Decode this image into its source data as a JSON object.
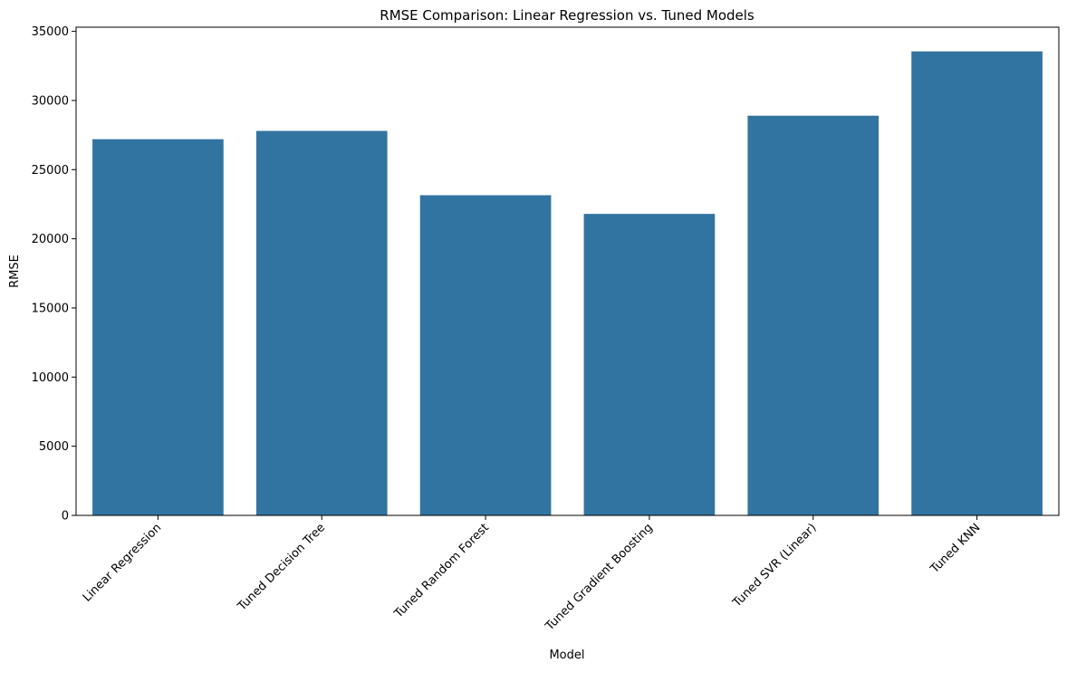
{
  "chart_data": {
    "type": "bar",
    "title": "RMSE Comparison: Linear Regression vs. Tuned Models",
    "xlabel": "Model",
    "ylabel": "RMSE",
    "categories": [
      "Linear Regression",
      "Tuned Decision Tree",
      "Tuned Random Forest",
      "Tuned Gradient Boosting",
      "Tuned SVR (Linear)",
      "Tuned KNN"
    ],
    "values": [
      27200,
      27800,
      23150,
      21800,
      28900,
      33550
    ],
    "ylim": [
      0,
      35300
    ],
    "yticks": [
      0,
      5000,
      10000,
      15000,
      20000,
      25000,
      30000,
      35000
    ],
    "grid": false,
    "bar_color": "#3274a1",
    "xtick_rotation": 45
  }
}
